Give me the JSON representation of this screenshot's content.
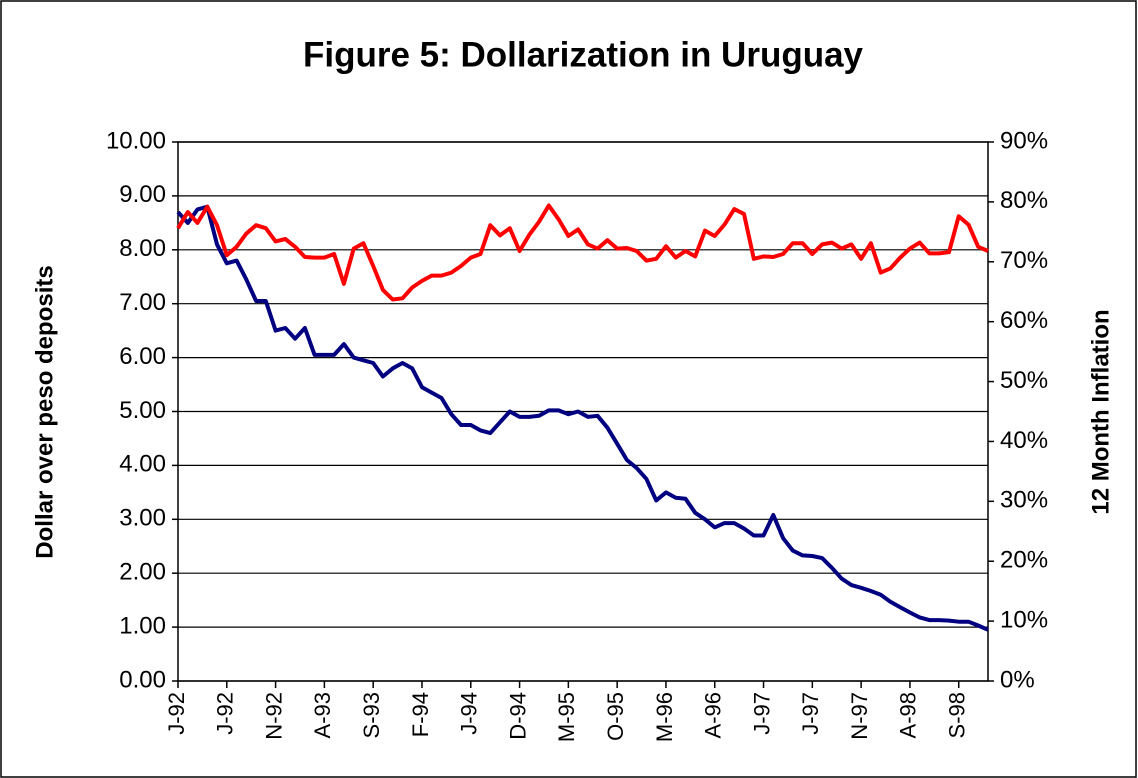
{
  "chart_data": {
    "type": "line",
    "title": "Figure 5: Dollarization in Uruguay",
    "ylabel": "Dollar over peso deposits",
    "y2label": "12 Month Inflation",
    "categories": [
      "J-92",
      null,
      null,
      null,
      null,
      "J-92",
      null,
      null,
      null,
      null,
      "N-92",
      null,
      null,
      null,
      null,
      "A-93",
      null,
      null,
      null,
      null,
      "S-93",
      null,
      null,
      null,
      null,
      "F-94",
      null,
      null,
      null,
      null,
      "J-94",
      null,
      null,
      null,
      null,
      "D-94",
      null,
      null,
      null,
      null,
      "M-95",
      null,
      null,
      null,
      null,
      "O-95",
      null,
      null,
      null,
      null,
      "M-96",
      null,
      null,
      null,
      null,
      "A-96",
      null,
      null,
      null,
      null,
      "J-97",
      null,
      null,
      null,
      null,
      "J-97",
      null,
      null,
      null,
      null,
      "N-97",
      null,
      null,
      null,
      null,
      "A-98",
      null,
      null,
      null,
      null,
      "S-98",
      null,
      null,
      null
    ],
    "series": [
      {
        "color": "#000080",
        "values": [
          8.7,
          8.5,
          8.75,
          8.8,
          8.1,
          7.75,
          7.8,
          7.45,
          7.05,
          7.05,
          6.5,
          6.55,
          6.35,
          6.55,
          6.05,
          6.05,
          6.05,
          6.25,
          6.0,
          5.95,
          5.9,
          5.65,
          5.8,
          5.9,
          5.8,
          5.45,
          5.35,
          5.25,
          4.95,
          4.75,
          4.75,
          4.65,
          4.6,
          4.8,
          5.0,
          4.9,
          4.9,
          4.92,
          5.02,
          5.02,
          4.95,
          5.0,
          4.9,
          4.92,
          4.7,
          4.4,
          4.1,
          3.95,
          3.75,
          3.35,
          3.5,
          3.4,
          3.38,
          3.12,
          3.0,
          2.85,
          2.93,
          2.93,
          2.83,
          2.7,
          2.7,
          3.08,
          2.65,
          2.42,
          2.33,
          2.32,
          2.28,
          2.1,
          1.9,
          1.78,
          1.73,
          1.67,
          1.6,
          1.47,
          1.37,
          1.27,
          1.18,
          1.13,
          1.13,
          1.12,
          1.1,
          1.1,
          1.03,
          0.95
        ]
      },
      {
        "color": "#ff0000",
        "axis": "y2",
        "values": [
          75.6,
          78.3,
          76.5,
          79.2,
          76.1,
          71.1,
          72.5,
          74.7,
          76.1,
          75.6,
          73.4,
          73.8,
          72.5,
          70.8,
          70.7,
          70.7,
          71.3,
          66.3,
          72.2,
          73.1,
          69.3,
          65.3,
          63.7,
          63.9,
          65.7,
          66.8,
          67.7,
          67.7,
          68.2,
          69.3,
          70.7,
          71.3,
          76.1,
          74.4,
          75.6,
          71.8,
          74.5,
          76.7,
          79.4,
          77.1,
          74.3,
          75.4,
          72.9,
          72.2,
          73.6,
          72.2,
          72.3,
          71.8,
          70.2,
          70.5,
          72.6,
          70.7,
          71.8,
          70.9,
          75.2,
          74.3,
          76.2,
          78.8,
          78.0,
          70.5,
          70.9,
          70.8,
          71.3,
          73.1,
          73.1,
          71.3,
          72.9,
          73.2,
          72.2,
          72.9,
          70.5,
          73.1,
          68.2,
          68.9,
          70.7,
          72.2,
          73.2,
          71.4,
          71.4,
          71.6,
          77.6,
          76.2,
          72.5,
          71.8
        ]
      }
    ],
    "ylim": [
      0,
      10
    ],
    "yticks": [
      {
        "value": 0,
        "label": "0.00"
      },
      {
        "value": 1,
        "label": "1.00"
      },
      {
        "value": 2,
        "label": "2.00"
      },
      {
        "value": 3,
        "label": "3.00"
      },
      {
        "value": 4,
        "label": "4.00"
      },
      {
        "value": 5,
        "label": "5.00"
      },
      {
        "value": 6,
        "label": "6.00"
      },
      {
        "value": 7,
        "label": "7.00"
      },
      {
        "value": 8,
        "label": "8.00"
      },
      {
        "value": 9,
        "label": "9.00"
      },
      {
        "value": 10,
        "label": "10.00"
      }
    ],
    "y2lim": [
      0,
      90
    ],
    "y2ticks": [
      {
        "value": 0,
        "label": "0%"
      },
      {
        "value": 10,
        "label": "10%"
      },
      {
        "value": 20,
        "label": "20%"
      },
      {
        "value": 30,
        "label": "30%"
      },
      {
        "value": 40,
        "label": "40%"
      },
      {
        "value": 50,
        "label": "50%"
      },
      {
        "value": 60,
        "label": "60%"
      },
      {
        "value": 70,
        "label": "70%"
      },
      {
        "value": 80,
        "label": "80%"
      },
      {
        "value": 90,
        "label": "90%"
      }
    ],
    "grid": true
  }
}
